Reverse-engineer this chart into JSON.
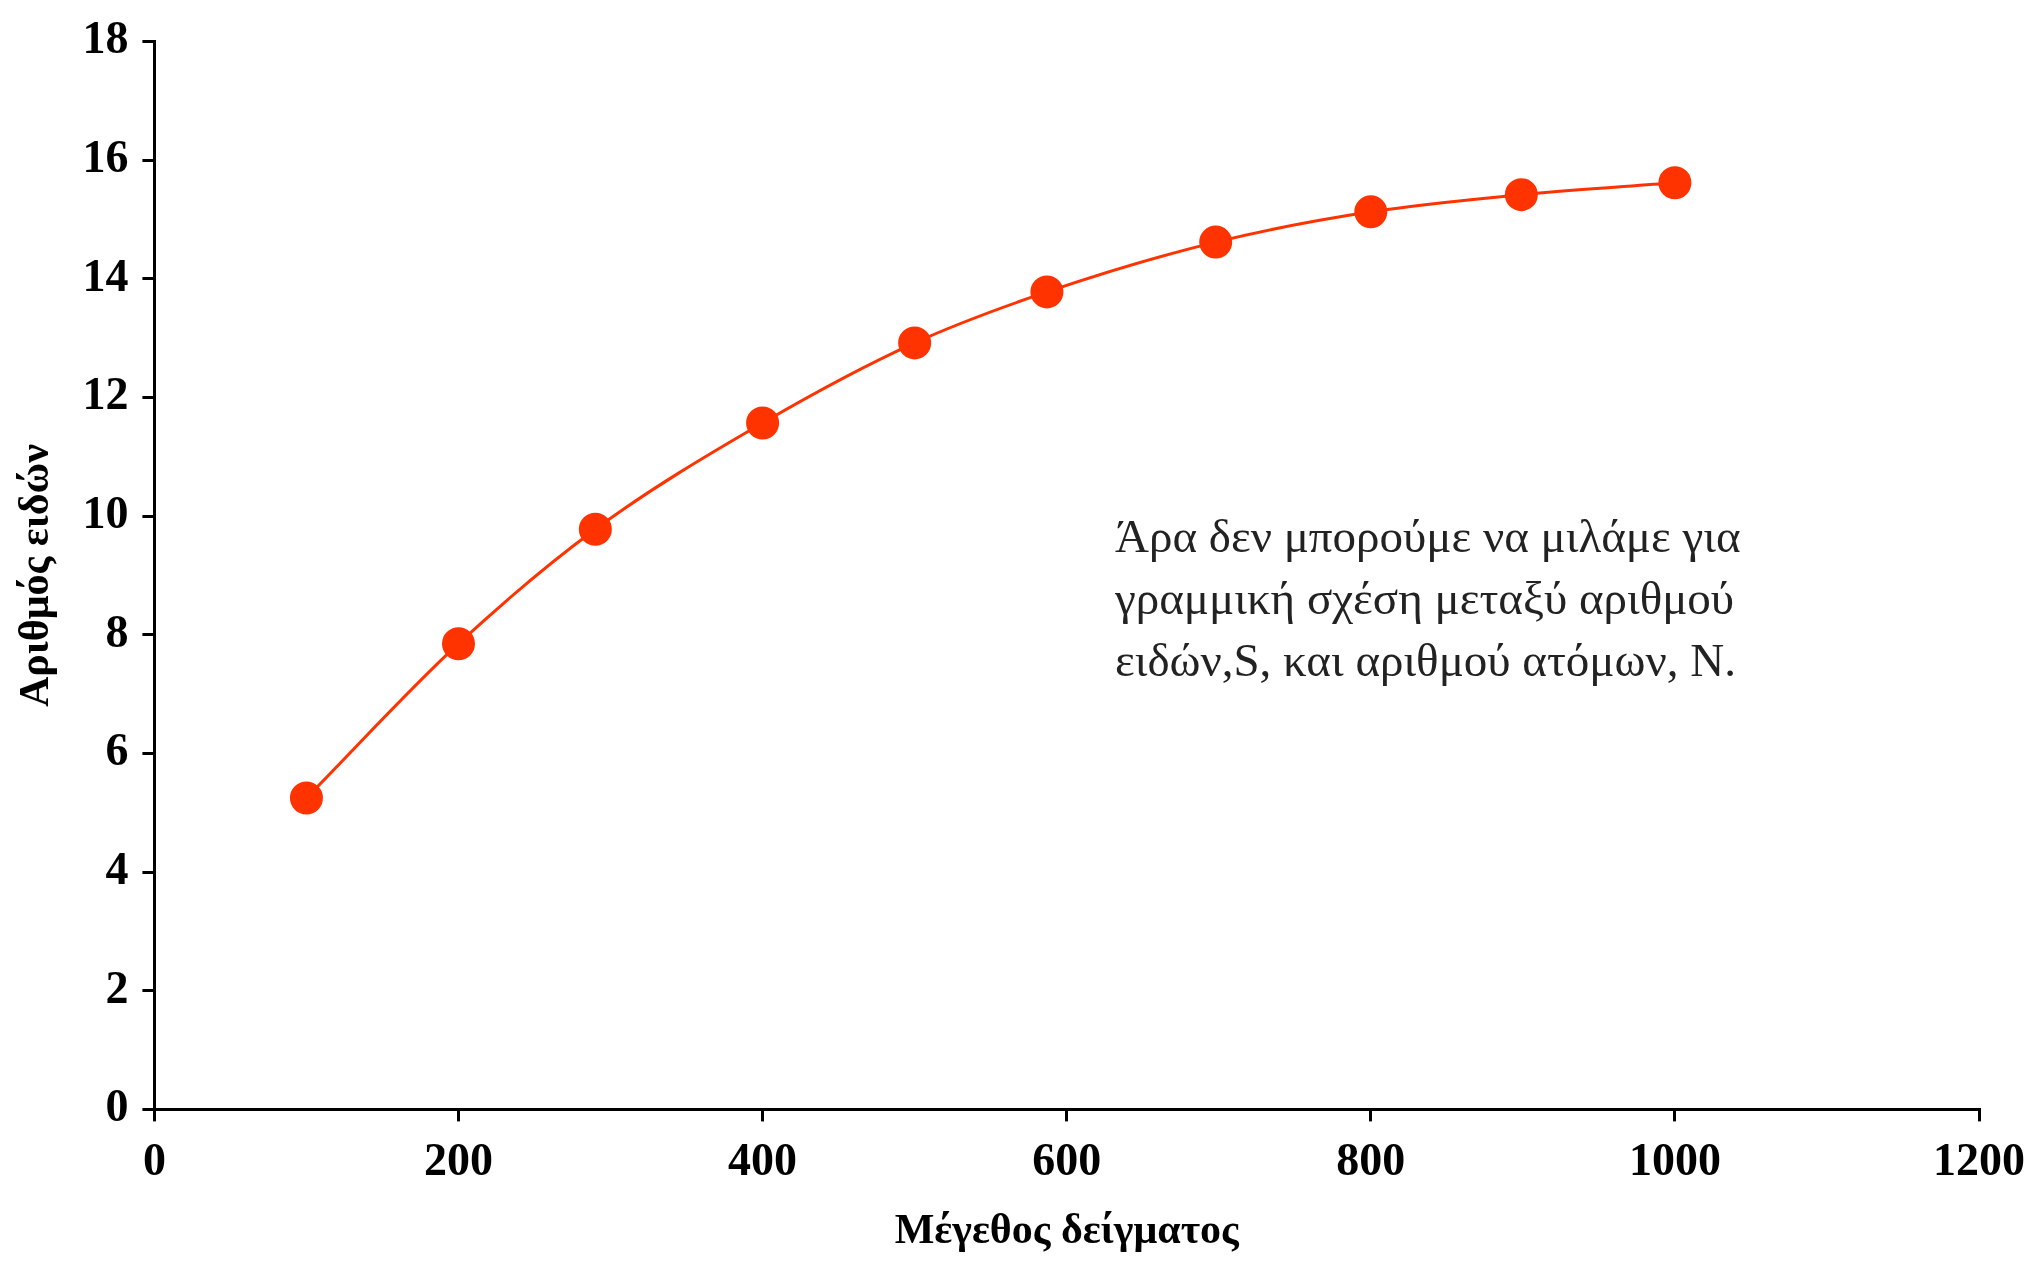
{
  "chart_data": {
    "type": "line",
    "xlabel": "Μέγεθος δείγματος",
    "ylabel": "Αριθμός ειδών",
    "x": [
      100,
      200,
      290,
      400,
      500,
      587,
      698,
      800,
      899,
      1000
    ],
    "series": [
      {
        "color": "#ff3300",
        "values": [
          5.25,
          7.85,
          9.78,
          11.57,
          12.92,
          13.78,
          14.62,
          15.13,
          15.42,
          15.62
        ]
      }
    ],
    "xlim": [
      0,
      1200
    ],
    "xticks": [
      0,
      200,
      400,
      600,
      800,
      1000,
      1200
    ],
    "ylim": [
      0,
      18
    ],
    "yticks": [
      0,
      2,
      4,
      6,
      8,
      10,
      12,
      14,
      16,
      18
    ],
    "grid": false,
    "legend": false,
    "marker": "circle",
    "line_style": "solid",
    "annotations": [
      "Άρα δεν μπορούμε να μιλάμε για γραμμική σχέση μεταξύ αριθμού ειδών,S, και αριθμού ατόμων, N."
    ]
  }
}
